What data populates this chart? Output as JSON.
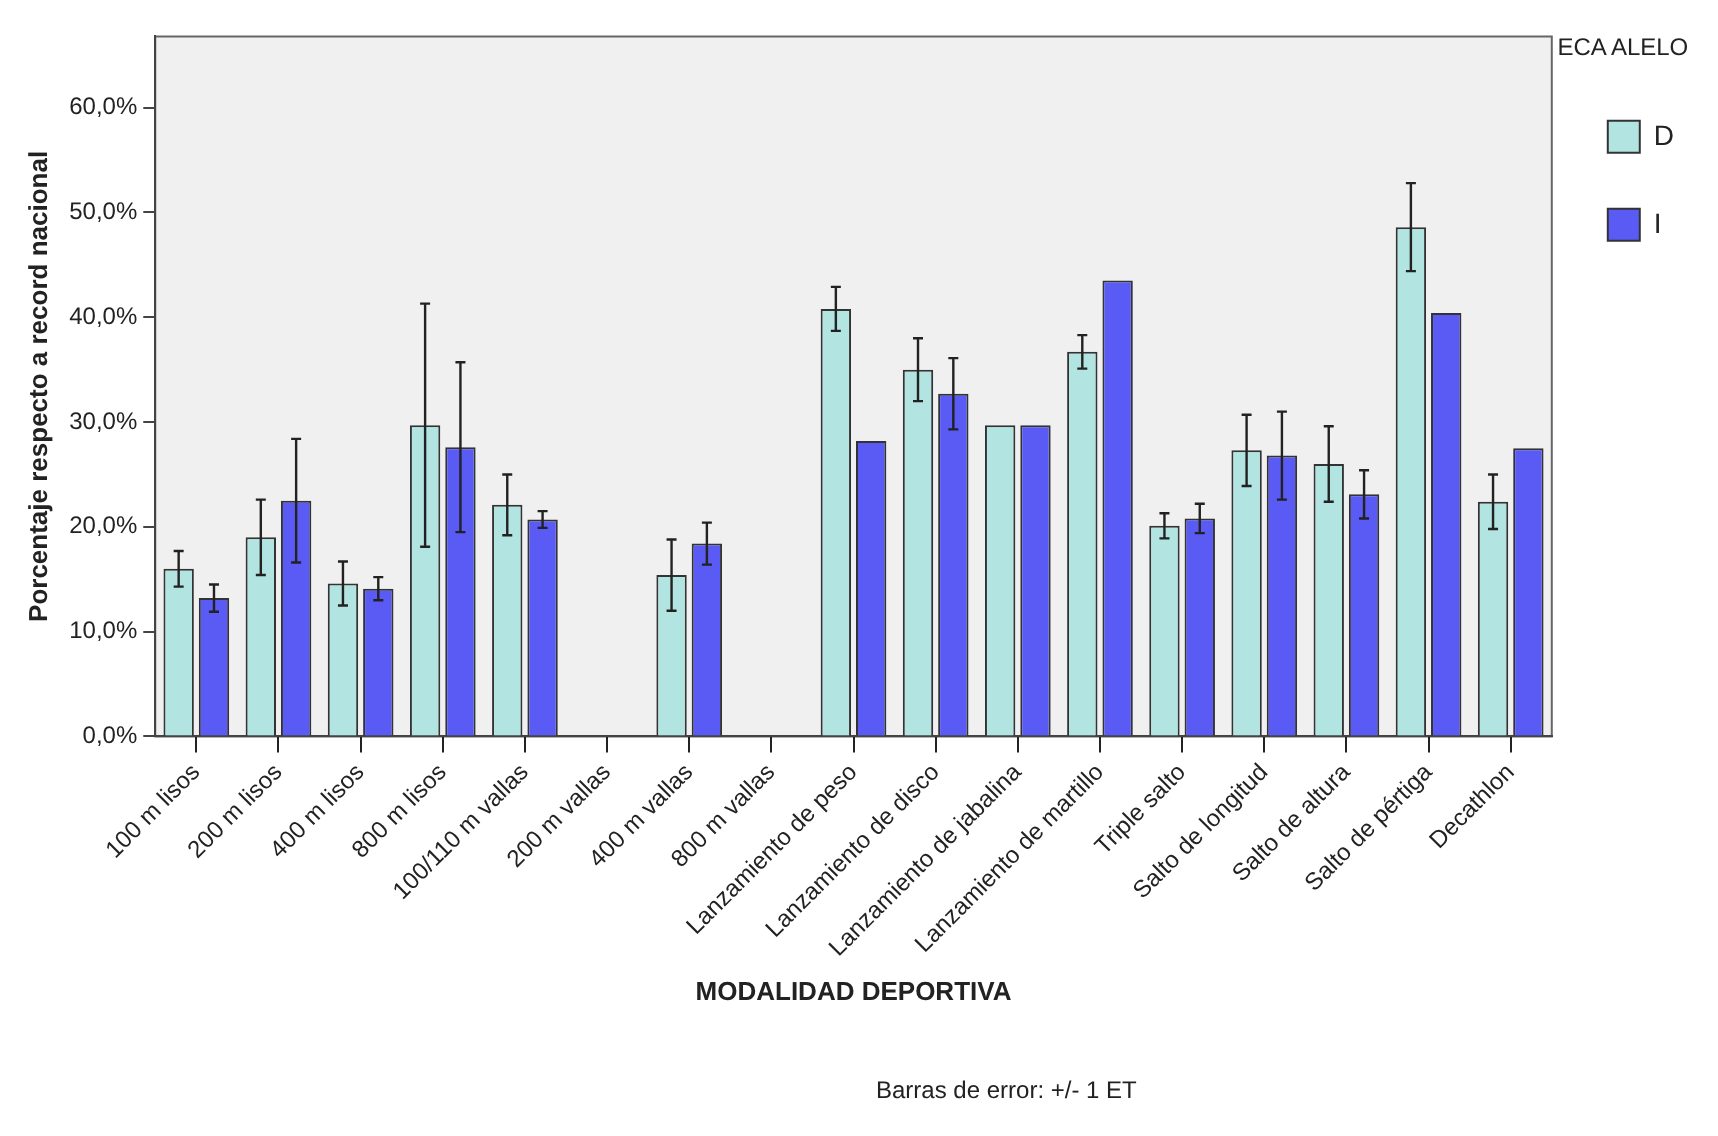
{
  "chart_data": {
    "type": "bar",
    "xlabel": "MODALIDAD DEPORTIVA",
    "ylabel": "Porcentaje respecto a record nacional",
    "legend_title": "ECA ALELO",
    "legend": "top right",
    "grid": false,
    "categories": [
      "100 m lisos",
      "200 m lisos",
      "400 m lisos",
      "800 m lisos",
      "100/110 m vallas",
      "200 m vallas",
      "400 m vallas",
      "800 m vallas",
      "Lanzamiento de peso",
      "Lanzamiento de disco",
      "Lanzamiento de jabalina",
      "Lanzamiento de martillo",
      "Triple salto",
      "Salto de longitud",
      "Salto de altura",
      "Salto de pértiga",
      "Decathlon"
    ],
    "series": [
      {
        "name": "D",
        "color": "#b2e4e1",
        "values": [
          16.0,
          19.0,
          14.6,
          29.7,
          22.1,
          null,
          15.4,
          null,
          40.8,
          35.0,
          29.7,
          36.7,
          20.1,
          27.3,
          26.0,
          48.6,
          22.4
        ],
        "errors": [
          1.7,
          3.6,
          2.1,
          11.6,
          2.9,
          null,
          3.4,
          null,
          2.1,
          3.0,
          null,
          1.6,
          1.2,
          3.4,
          3.6,
          4.2,
          2.6
        ]
      },
      {
        "name": "I",
        "color": "#5a5af5",
        "values": [
          13.2,
          22.5,
          14.1,
          27.6,
          20.7,
          null,
          18.4,
          null,
          28.2,
          32.7,
          29.7,
          43.5,
          20.8,
          26.8,
          23.1,
          40.4,
          27.5
        ],
        "errors": [
          1.3,
          5.9,
          1.1,
          8.1,
          0.8,
          null,
          2.0,
          null,
          null,
          3.4,
          null,
          null,
          1.4,
          4.2,
          2.3,
          null,
          null
        ]
      }
    ],
    "ylim": [
      0,
      66.8
    ],
    "yticks": [
      {
        "value": 0,
        "label": "0,0%"
      },
      {
        "value": 10,
        "label": "10,0%"
      },
      {
        "value": 20,
        "label": "20,0%"
      },
      {
        "value": 30,
        "label": "30,0%"
      },
      {
        "value": 40,
        "label": "40,0%"
      },
      {
        "value": 50,
        "label": "50,0%"
      },
      {
        "value": 60,
        "label": "60,0%"
      }
    ],
    "annotations": [
      "Barras de error: +/- 1 ET"
    ]
  }
}
